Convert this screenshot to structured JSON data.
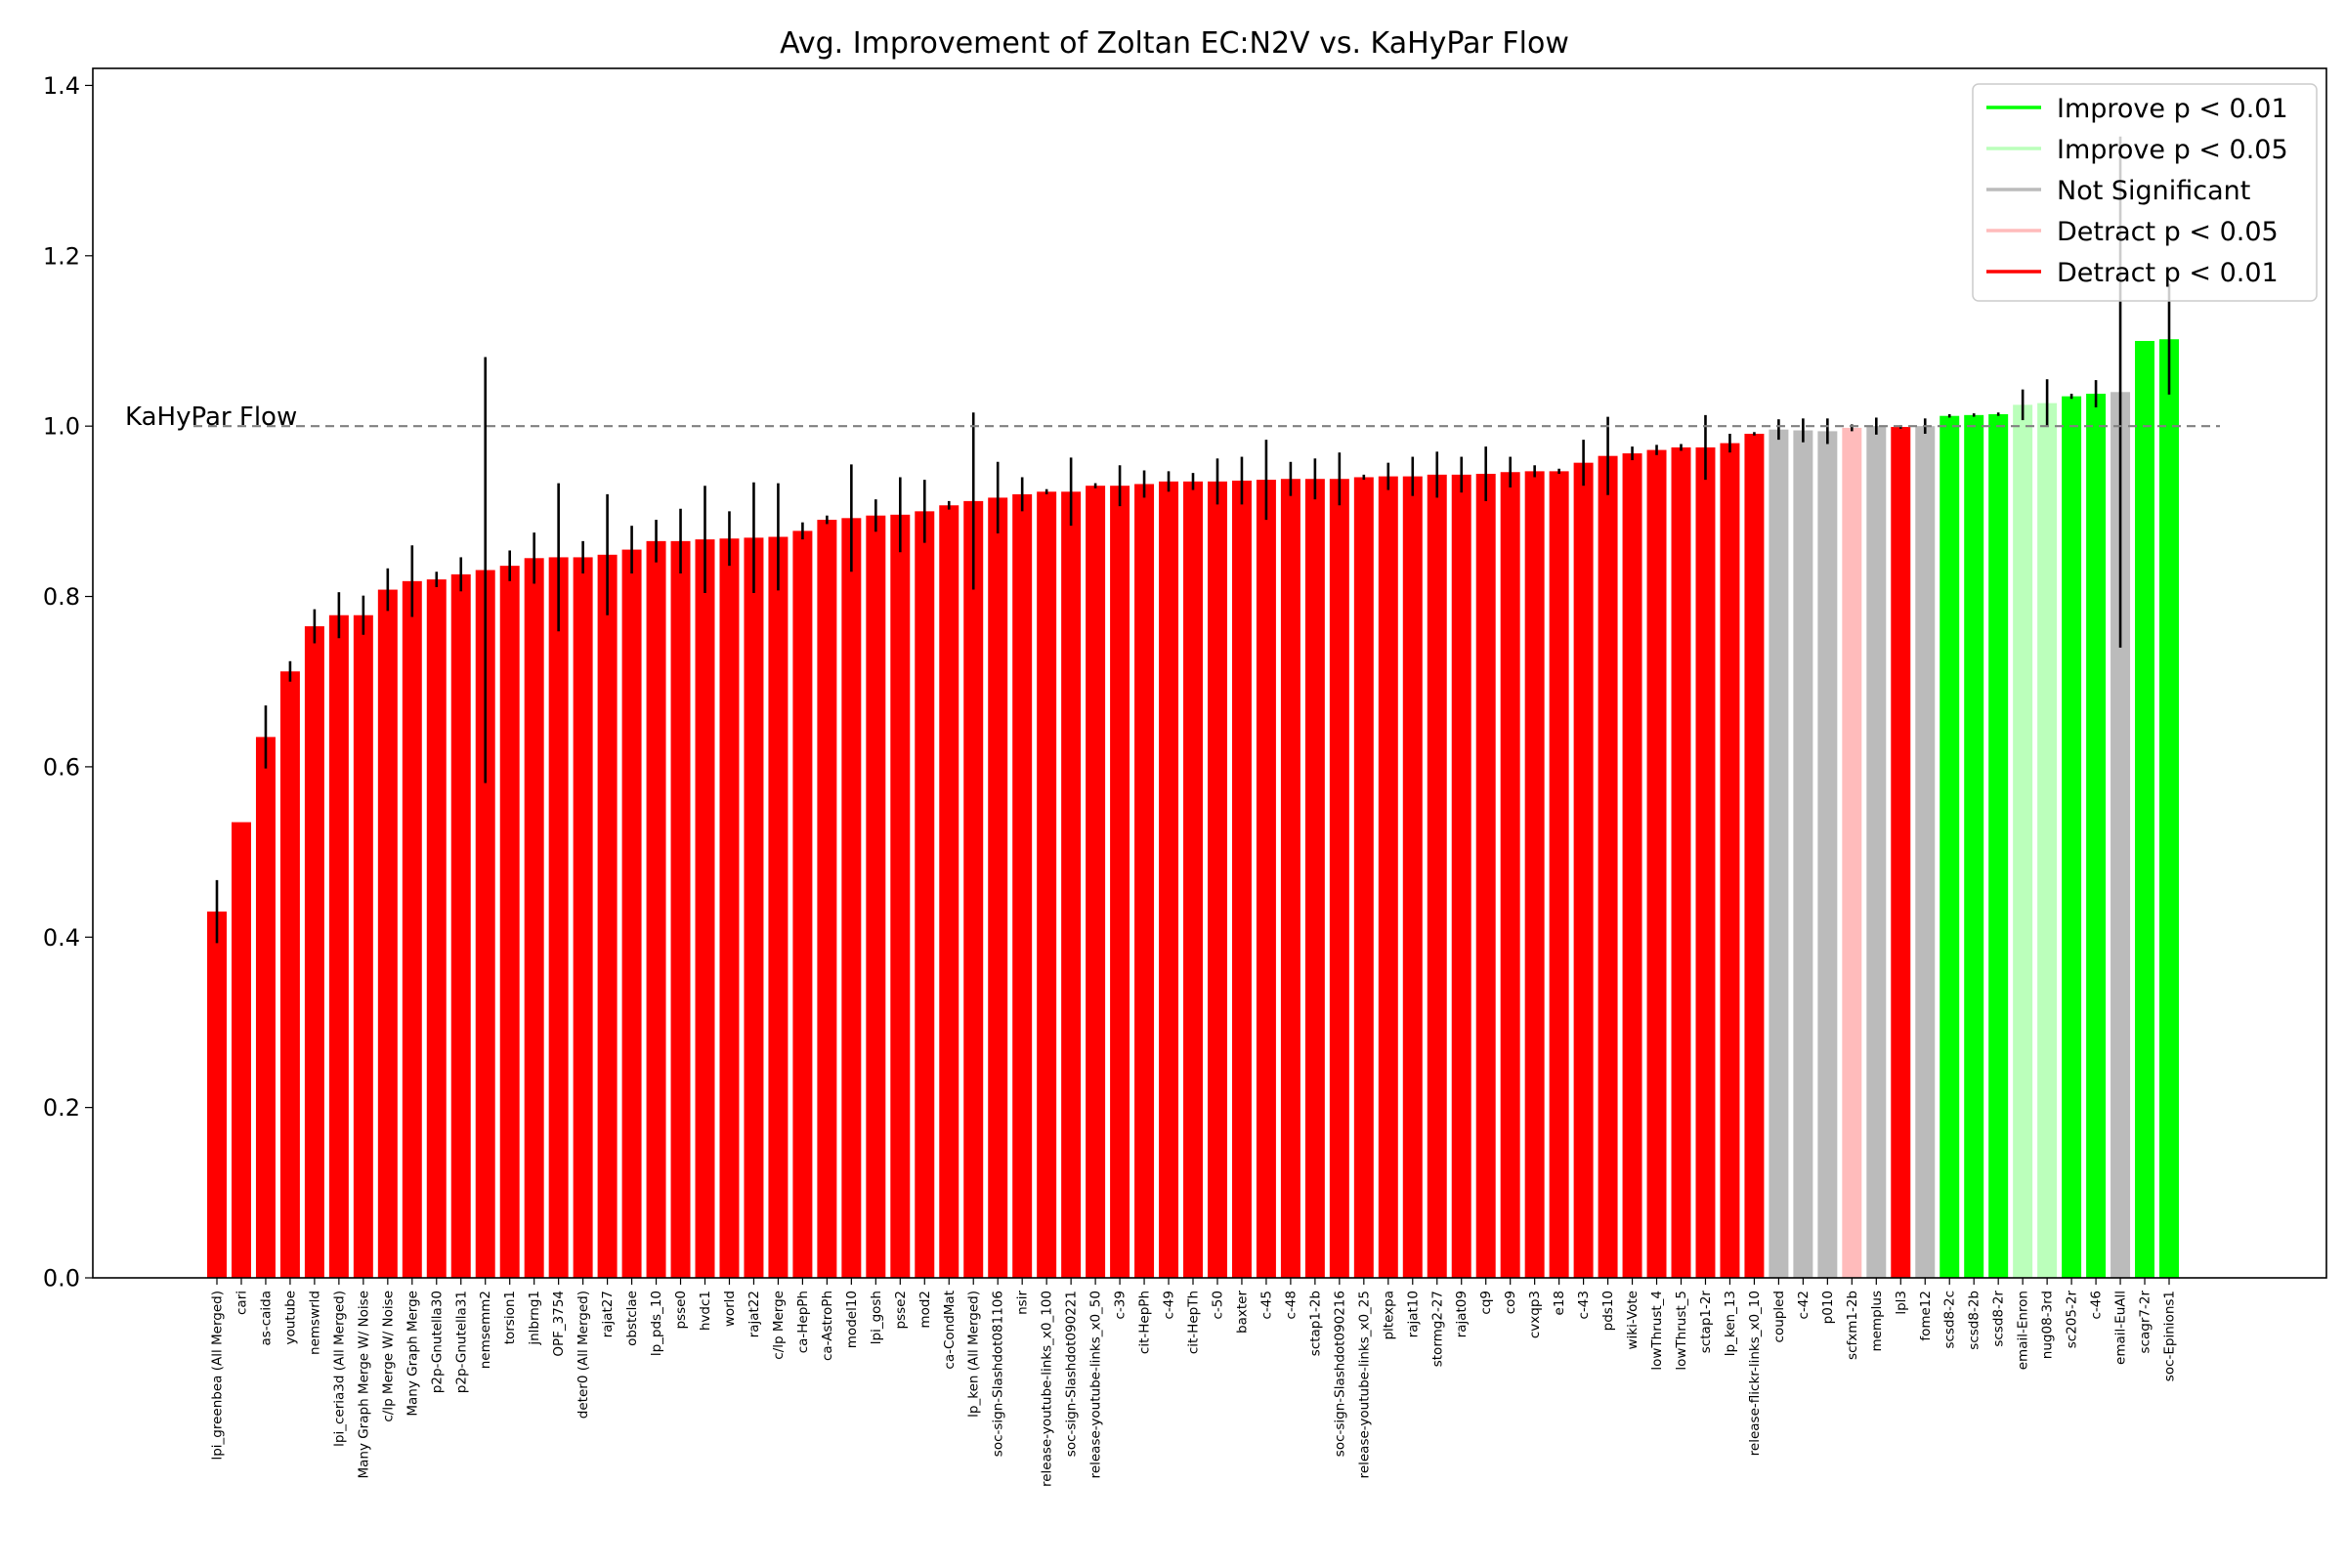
{
  "chart_data": {
    "type": "bar",
    "title": "Avg. Improvement of Zoltan EC:N2V vs. KaHyPar Flow",
    "xlabel": "",
    "ylabel": "",
    "ylim": [
      0,
      1.42
    ],
    "yticks": [
      "0.0",
      "0.2",
      "0.4",
      "0.6",
      "0.8",
      "1.0",
      "1.2",
      "1.4"
    ],
    "grid": false,
    "reference_line": {
      "value": 1.0,
      "label": "KaHyPar Flow"
    },
    "colors": {
      "improve_01": "#00ff00",
      "improve_05": "#bbffbb",
      "not_significant": "#bbbbbb",
      "detract_05": "#ffbbbb",
      "detract_01": "#ff0000",
      "reference": "#808080",
      "error": "#000000"
    },
    "legend": {
      "position": "top-right",
      "items": [
        {
          "label": "Improve p < 0.01",
          "color": "#00ff00"
        },
        {
          "label": "Improve p < 0.05",
          "color": "#bbffbb"
        },
        {
          "label": "Not Significant",
          "color": "#bbbbbb"
        },
        {
          "label": "Detract p < 0.05",
          "color": "#ffbbbb"
        },
        {
          "label": "Detract p < 0.01",
          "color": "#ff0000"
        }
      ]
    },
    "categories": [
      "lpi_greenbea (All Merged)",
      "cari",
      "as-caida",
      "youtube",
      "nemswrld",
      "lpi_ceria3d (All Merged)",
      "Many Graph Merge W/ Noise",
      "c/lp Merge W/ Noise",
      "Many Graph Merge",
      "p2p-Gnutella30",
      "p2p-Gnutella31",
      "nemsemm2",
      "torsion1",
      "jnlbrng1",
      "OPF_3754",
      "deter0 (All Merged)",
      "rajat27",
      "obstclae",
      "lp_pds_10",
      "psse0",
      "hvdc1",
      "world",
      "rajat22",
      "c/lp Merge",
      "ca-HepPh",
      "ca-AstroPh",
      "model10",
      "lpi_gosh",
      "psse2",
      "mod2",
      "ca-CondMat",
      "lp_ken (All Merged)",
      "soc-sign-Slashdot081106",
      "nsir",
      "release-youtube-links_x0_100",
      "soc-sign-Slashdot090221",
      "release-youtube-links_x0_50",
      "c-39",
      "cit-HepPh",
      "c-49",
      "cit-HepTh",
      "c-50",
      "baxter",
      "c-45",
      "c-48",
      "sctap1-2b",
      "soc-sign-Slashdot090216",
      "release-youtube-links_x0_25",
      "pltexpa",
      "rajat10",
      "stormg2-27",
      "rajat09",
      "cq9",
      "co9",
      "cvxqp3",
      "e18",
      "c-43",
      "pds10",
      "wiki-Vote",
      "lowThrust_4",
      "lowThrust_5",
      "sctap1-2r",
      "lp_ken_13",
      "release-flickr-links_x0_10",
      "coupled",
      "c-42",
      "p010",
      "scfxm1-2b",
      "memplus",
      "lpl3",
      "fome12",
      "scsd8-2c",
      "scsd8-2b",
      "scsd8-2r",
      "email-Enron",
      "nug08-3rd",
      "sc205-2r",
      "c-46",
      "email-EuAll",
      "scagr7-2r",
      "soc-Epinions1"
    ],
    "values": [
      0.43,
      0.535,
      0.635,
      0.712,
      0.765,
      0.778,
      0.778,
      0.808,
      0.818,
      0.82,
      0.826,
      0.831,
      0.836,
      0.845,
      0.846,
      0.846,
      0.849,
      0.855,
      0.865,
      0.865,
      0.867,
      0.868,
      0.869,
      0.87,
      0.877,
      0.89,
      0.892,
      0.895,
      0.896,
      0.9,
      0.907,
      0.912,
      0.916,
      0.92,
      0.923,
      0.923,
      0.93,
      0.93,
      0.932,
      0.935,
      0.935,
      0.935,
      0.936,
      0.937,
      0.938,
      0.938,
      0.938,
      0.94,
      0.941,
      0.941,
      0.943,
      0.943,
      0.944,
      0.946,
      0.947,
      0.947,
      0.957,
      0.965,
      0.968,
      0.972,
      0.975,
      0.975,
      0.98,
      0.991,
      0.996,
      0.995,
      0.994,
      0.998,
      1.0,
      0.999,
      1.0,
      1.012,
      1.013,
      1.014,
      1.025,
      1.027,
      1.035,
      1.038,
      1.04,
      1.1,
      1.102
    ],
    "errors": [
      0.037,
      0.0,
      0.037,
      0.012,
      0.02,
      0.027,
      0.023,
      0.025,
      0.042,
      0.009,
      0.02,
      0.25,
      0.018,
      0.03,
      0.087,
      0.019,
      0.071,
      0.028,
      0.025,
      0.038,
      0.063,
      0.032,
      0.065,
      0.063,
      0.01,
      0.005,
      0.063,
      0.019,
      0.044,
      0.037,
      0.005,
      0.104,
      0.042,
      0.02,
      0.003,
      0.04,
      0.003,
      0.024,
      0.016,
      0.012,
      0.01,
      0.027,
      0.028,
      0.047,
      0.02,
      0.024,
      0.031,
      0.003,
      0.016,
      0.023,
      0.027,
      0.021,
      0.032,
      0.018,
      0.007,
      0.003,
      0.027,
      0.046,
      0.008,
      0.006,
      0.004,
      0.038,
      0.011,
      0.002,
      0.012,
      0.014,
      0.015,
      0.004,
      0.01,
      0.002,
      0.009,
      0.002,
      0.002,
      0.002,
      0.018,
      0.028,
      0.003,
      0.016,
      0.3,
      0.0,
      0.065
    ],
    "significance": [
      "detract_01",
      "detract_01",
      "detract_01",
      "detract_01",
      "detract_01",
      "detract_01",
      "detract_01",
      "detract_01",
      "detract_01",
      "detract_01",
      "detract_01",
      "detract_01",
      "detract_01",
      "detract_01",
      "detract_01",
      "detract_01",
      "detract_01",
      "detract_01",
      "detract_01",
      "detract_01",
      "detract_01",
      "detract_01",
      "detract_01",
      "detract_01",
      "detract_01",
      "detract_01",
      "detract_01",
      "detract_01",
      "detract_01",
      "detract_01",
      "detract_01",
      "detract_01",
      "detract_01",
      "detract_01",
      "detract_01",
      "detract_01",
      "detract_01",
      "detract_01",
      "detract_01",
      "detract_01",
      "detract_01",
      "detract_01",
      "detract_01",
      "detract_01",
      "detract_01",
      "detract_01",
      "detract_01",
      "detract_01",
      "detract_01",
      "detract_01",
      "detract_01",
      "detract_01",
      "detract_01",
      "detract_01",
      "detract_01",
      "detract_01",
      "detract_01",
      "detract_01",
      "detract_01",
      "detract_01",
      "detract_01",
      "detract_01",
      "detract_01",
      "detract_01",
      "not_significant",
      "not_significant",
      "not_significant",
      "detract_05",
      "not_significant",
      "detract_01",
      "not_significant",
      "improve_01",
      "improve_01",
      "improve_01",
      "improve_05",
      "improve_05",
      "improve_01",
      "improve_01",
      "not_significant",
      "improve_01",
      "improve_01"
    ]
  }
}
